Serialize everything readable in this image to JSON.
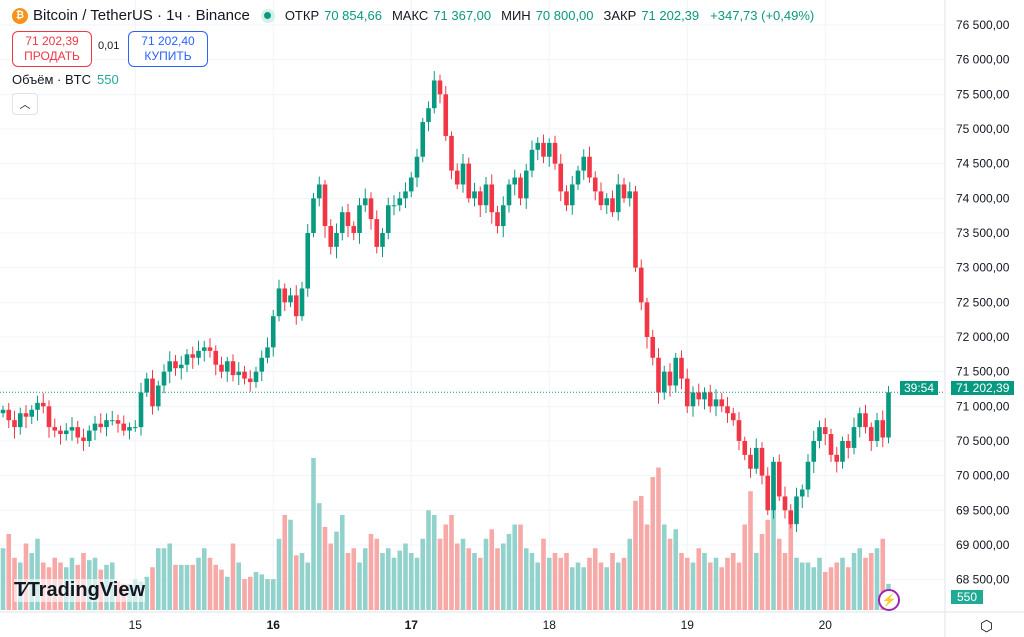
{
  "header": {
    "symbol": "Bitcoin / TetherUS · 1ч · Binance",
    "coin_icon": "bitcoin-icon",
    "ohlc": [
      {
        "label": "ОТКР",
        "value": "70 854,66"
      },
      {
        "label": "МАКС",
        "value": "71 367,00"
      },
      {
        "label": "МИН",
        "value": "70 800,00"
      },
      {
        "label": "ЗАКР",
        "value": "71 202,39"
      }
    ],
    "change": "+347,73 (+0,49%)"
  },
  "trade": {
    "sell_price": "71 202,39",
    "sell_label": "ПРОДАТЬ",
    "spread": "0,01",
    "buy_price": "71 202,40",
    "buy_label": "КУПИТЬ"
  },
  "volume_legend": {
    "label": "Объём · BTC",
    "value": "550"
  },
  "price_tag": {
    "price": "71 202,39",
    "countdown": "39:54"
  },
  "volume_tag": "550",
  "brand": "TradingView",
  "colors": {
    "up": "#089981",
    "down": "#f23645",
    "up_vol": "#92d2cc",
    "down_vol": "#f7a9a7"
  },
  "chart_data": {
    "type": "candlestick",
    "timeframe": "1h",
    "x_tick_labels": [
      {
        "label": "15",
        "index": 23
      },
      {
        "label": "16",
        "index": 47
      },
      {
        "label": "17",
        "index": 71
      },
      {
        "label": "18",
        "index": 95
      },
      {
        "label": "19",
        "index": 119
      },
      {
        "label": "20",
        "index": 143
      }
    ],
    "y_ticks": [
      76500,
      76000,
      75500,
      75000,
      74500,
      74000,
      73500,
      73000,
      72500,
      72000,
      71500,
      71000,
      70500,
      70000,
      69500,
      69000,
      68500
    ],
    "y_tick_labels": [
      "76 500,00",
      "76 000,00",
      "75 500,00",
      "75 000,00",
      "74 500,00",
      "74 000,00",
      "73 500,00",
      "73 000,00",
      "72 500,00",
      "72 000,00",
      "71 500,00",
      "71 000,00",
      "70 500,00",
      "70 000,00",
      "69 500,00",
      "69 000,00",
      "68 500,00"
    ],
    "ylim": [
      68200,
      76860
    ],
    "first_open": 70900,
    "closes": [
      70950,
      70800,
      70700,
      70900,
      70850,
      70950,
      71050,
      71000,
      70700,
      70650,
      70600,
      70650,
      70700,
      70550,
      70500,
      70650,
      70750,
      70700,
      70800,
      70800,
      70750,
      70650,
      70700,
      70700,
      71200,
      71400,
      71000,
      71300,
      71500,
      71650,
      71550,
      71600,
      71750,
      71700,
      71800,
      71850,
      71800,
      71600,
      71500,
      71650,
      71450,
      71500,
      71400,
      71350,
      71500,
      71700,
      71850,
      72300,
      72700,
      72500,
      72600,
      72300,
      72700,
      73500,
      74000,
      74200,
      73600,
      73300,
      73500,
      73800,
      73600,
      73500,
      73900,
      74000,
      73700,
      73300,
      73500,
      73900,
      73900,
      74000,
      74100,
      74300,
      74600,
      75100,
      75300,
      75700,
      75500,
      74900,
      74400,
      74200,
      74500,
      74000,
      74100,
      73900,
      74200,
      73800,
      73600,
      73900,
      74200,
      74300,
      74000,
      74400,
      74700,
      74800,
      74600,
      74800,
      74500,
      74100,
      73900,
      74200,
      74400,
      74600,
      74300,
      74100,
      73900,
      74000,
      73800,
      74200,
      74000,
      74100,
      73000,
      72500,
      72000,
      71700,
      71200,
      71500,
      71300,
      71700,
      71400,
      71000,
      71200,
      71100,
      71200,
      71000,
      71100,
      71000,
      70900,
      70800,
      70500,
      70300,
      70100,
      70400,
      70000,
      69500,
      70200,
      69700,
      69500,
      69300,
      69700,
      69800,
      70200,
      70500,
      70700,
      70600,
      70300,
      70200,
      70500,
      70400,
      70700,
      70900,
      70700,
      70500,
      70800,
      70550,
      71202.39
    ],
    "volumes": [
      1300,
      1600,
      1100,
      1000,
      1400,
      1200,
      1500,
      1000,
      900,
      1100,
      1000,
      900,
      1100,
      950,
      1200,
      1050,
      1100,
      850,
      950,
      1000,
      600,
      550,
      550,
      650,
      600,
      700,
      900,
      1300,
      1300,
      1400,
      950,
      950,
      950,
      950,
      1100,
      1300,
      1100,
      950,
      850,
      700,
      1400,
      1000,
      650,
      700,
      800,
      750,
      650,
      650,
      1500,
      2000,
      1900,
      1150,
      1200,
      1000,
      3200,
      2250,
      1750,
      1400,
      1650,
      2000,
      1200,
      1300,
      1000,
      1300,
      1600,
      1500,
      1200,
      1300,
      1100,
      1250,
      1400,
      1200,
      1100,
      1500,
      2100,
      2000,
      1500,
      1800,
      2000,
      1400,
      1500,
      1300,
      1200,
      1100,
      1500,
      1700,
      1300,
      1400,
      1600,
      1800,
      1800,
      1300,
      1200,
      1000,
      1500,
      1100,
      1200,
      1100,
      1200,
      900,
      1000,
      900,
      1100,
      1300,
      1000,
      900,
      1200,
      1000,
      1100,
      1500,
      2300,
      2400,
      1800,
      2800,
      3000,
      1800,
      1500,
      1700,
      1200,
      1100,
      1000,
      1300,
      1200,
      1000,
      1100,
      900,
      1100,
      1200,
      1000,
      1800,
      2500,
      1200,
      1600,
      1900,
      2800,
      1500,
      1200,
      2000,
      1100,
      1000,
      1000,
      900,
      1100,
      800,
      900,
      1000,
      1100,
      900,
      1200,
      1300,
      1100,
      1200,
      1300,
      1500,
      550
    ]
  }
}
